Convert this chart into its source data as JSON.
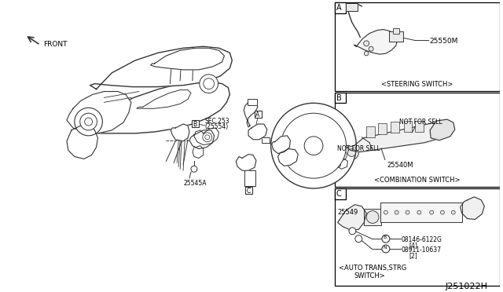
{
  "bg_color": "#ffffff",
  "line_color": "#333333",
  "text_color": "#000000",
  "diagram_number": "J251022H",
  "panel_A_label": "A",
  "panel_A_part": "25550M",
  "panel_A_caption": "<STEERING SWITCH>",
  "panel_B_label": "B",
  "panel_B_part": "25540M",
  "panel_B_nfs1": "NOT FOR SELL",
  "panel_B_nfs2": "NOT FOR SELL",
  "panel_B_caption": "<COMBINATION SWITCH>",
  "panel_C_label": "C",
  "panel_C_part1": "25549",
  "panel_C_part2a": "B",
  "panel_C_part2b": "08146-6122G",
  "panel_C_part2c": "[4]",
  "panel_C_part3a": "N",
  "panel_C_part3b": "08911-10637",
  "panel_C_part3c": "[2]",
  "panel_C_caption1": "<AUTO TRANS,STRG",
  "panel_C_caption2": "SWITCH>",
  "sec_label1": "SEC.253",
  "sec_label2": "(25554)",
  "label_B": "B",
  "label_25545A": "25545A",
  "label_A": "A",
  "label_C": "C",
  "front_label": "FRONT"
}
